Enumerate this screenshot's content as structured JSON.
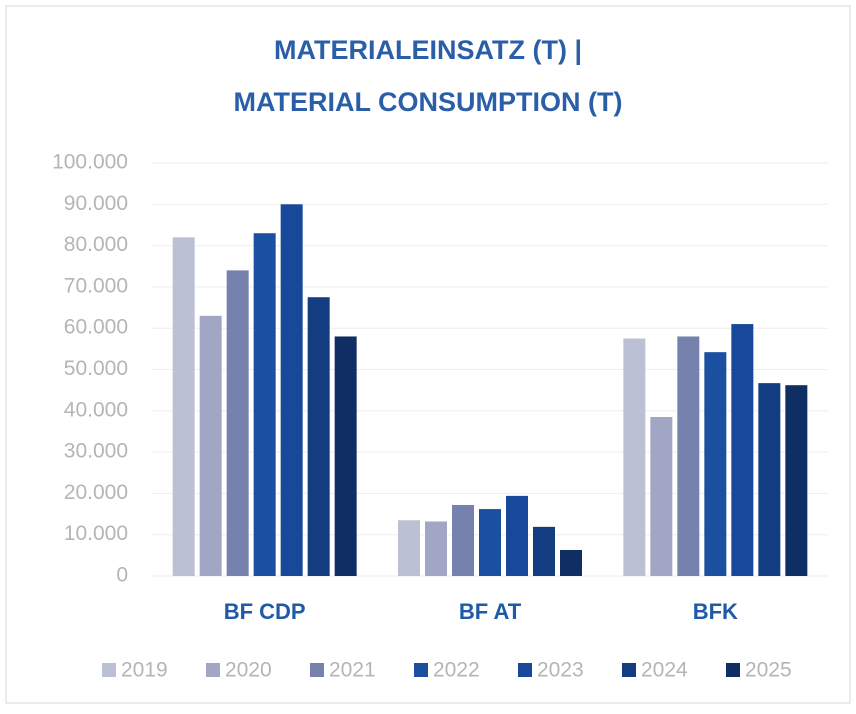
{
  "chart_data": {
    "type": "bar",
    "title_lines": [
      "MATERIALEINSATZ (T) |",
      "MATERIAL CONSUMPTION (T)"
    ],
    "categories": [
      "BF CDP",
      "BF AT",
      "BFK"
    ],
    "series": [
      {
        "name": "2019",
        "color": "#bcc0d4",
        "values": [
          82000,
          13500,
          57500
        ]
      },
      {
        "name": "2020",
        "color": "#a0a6c4",
        "values": [
          63000,
          13200,
          38500
        ]
      },
      {
        "name": "2021",
        "color": "#7682ad",
        "values": [
          74000,
          17200,
          58000
        ]
      },
      {
        "name": "2022",
        "color": "#1b4fa0",
        "values": [
          83000,
          16200,
          54200
        ]
      },
      {
        "name": "2023",
        "color": "#17489a",
        "values": [
          90000,
          19400,
          61000
        ]
      },
      {
        "name": "2024",
        "color": "#133d80",
        "values": [
          67500,
          11900,
          46700
        ]
      },
      {
        "name": "2025",
        "color": "#0f2e63",
        "values": [
          58000,
          6300,
          46200
        ]
      }
    ],
    "ylim": [
      0,
      100000
    ],
    "yticks": [
      0,
      {
        "value": 10000,
        "label": "10.000"
      },
      {
        "value": 20000,
        "label": "20.000"
      },
      {
        "value": 30000,
        "label": "30.000"
      },
      {
        "value": 40000,
        "label": "40.000"
      },
      {
        "value": 50000,
        "label": "50.000"
      },
      {
        "value": 60000,
        "label": "60.000"
      },
      {
        "value": 70000,
        "label": "70.000"
      },
      {
        "value": 80000,
        "label": "80.000"
      },
      {
        "value": 90000,
        "label": "90.000"
      },
      {
        "value": 100000,
        "label": "100.000"
      }
    ],
    "grid": true,
    "legend": "bottom"
  }
}
